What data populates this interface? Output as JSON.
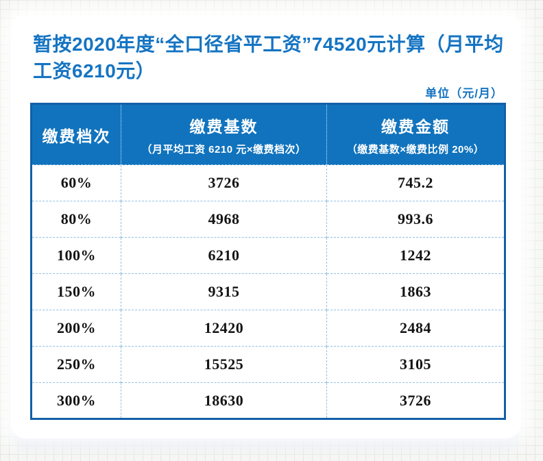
{
  "page": {
    "title": "暂按2020年度“全口径省平工资”74520元计算（月平均工资6210元）",
    "unit_label": "单位（元/月）"
  },
  "table": {
    "columns": [
      {
        "label": "缴费档次",
        "sublabel": ""
      },
      {
        "label": "缴费基数",
        "sublabel": "（月平均工资 6210 元×缴费档次）"
      },
      {
        "label": "缴费金额",
        "sublabel": "（缴费基数×缴费比例 20%）"
      }
    ],
    "rows": [
      [
        "60%",
        "3726",
        "745.2"
      ],
      [
        "80%",
        "4968",
        "993.6"
      ],
      [
        "100%",
        "6210",
        "1242"
      ],
      [
        "150%",
        "9315",
        "1863"
      ],
      [
        "200%",
        "12420",
        "2484"
      ],
      [
        "250%",
        "15525",
        "3105"
      ],
      [
        "300%",
        "18630",
        "3726"
      ]
    ]
  },
  "colors": {
    "title_blue": "#1574c2",
    "header_bg": "#1173bd",
    "table_border": "#1160a8",
    "divider_blue": "#8fc0e4"
  },
  "chart_data": {
    "type": "table",
    "title": "暂按2020年度“全口径省平工资”74520元计算（月平均工资6210元）",
    "unit": "元/月",
    "columns": [
      "缴费档次",
      "缴费基数（月平均工资 6210 元×缴费档次）",
      "缴费金额（缴费基数×缴费比例 20%）"
    ],
    "rows": [
      [
        "60%",
        3726,
        745.2
      ],
      [
        "80%",
        4968,
        993.6
      ],
      [
        "100%",
        6210,
        1242
      ],
      [
        "150%",
        9315,
        1863
      ],
      [
        "200%",
        12420,
        2484
      ],
      [
        "250%",
        15525,
        3105
      ],
      [
        "300%",
        18630,
        3726
      ]
    ]
  }
}
